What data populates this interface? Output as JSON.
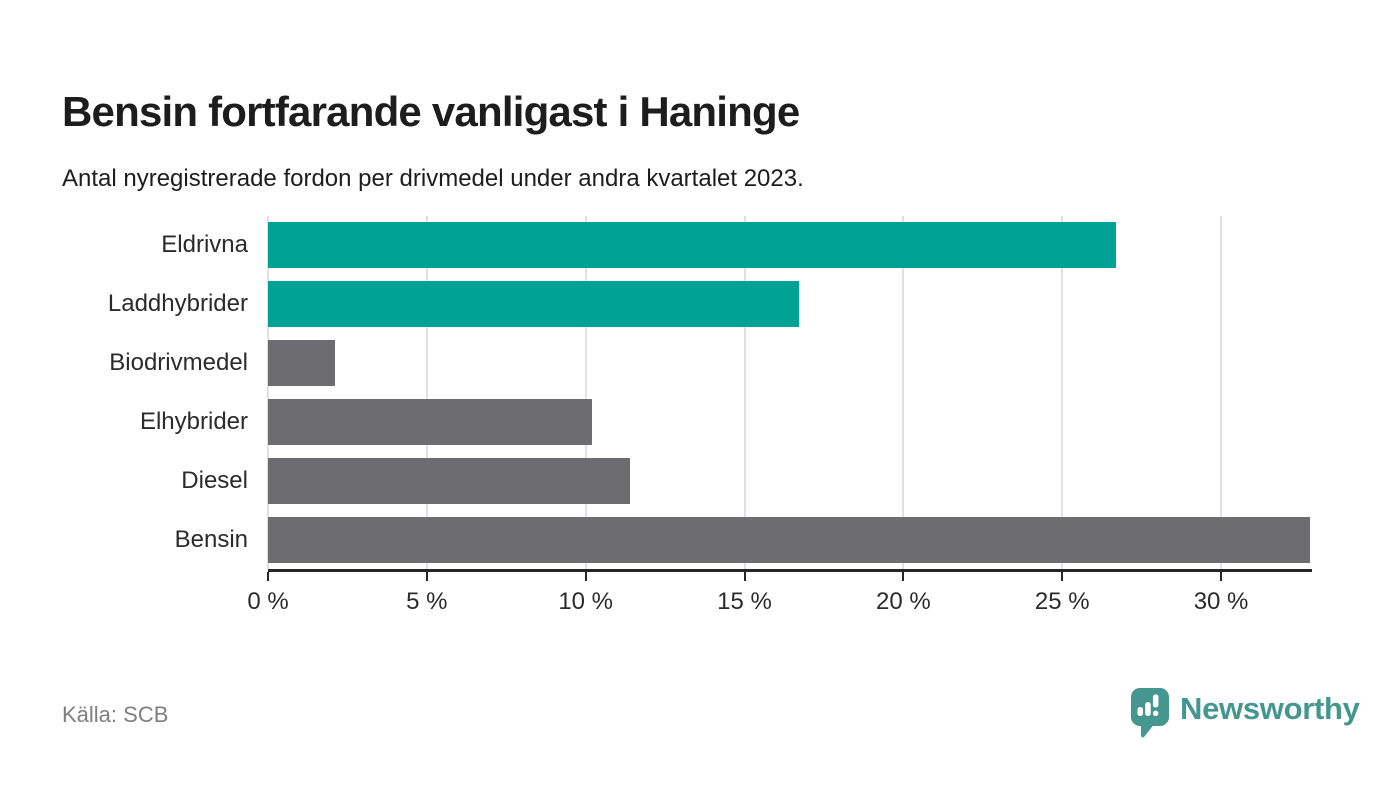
{
  "page": {
    "title": "Bensin fortfarande vanligast i Haninge",
    "subtitle": "Antal nyregistrerade fordon per drivmedel under andra kvartalet 2023.",
    "source": "Källa: SCB",
    "brand": "Newsworthy"
  },
  "colors": {
    "accent_teal": "#00a296",
    "neutral_gray": "#6d6d71",
    "logo_teal": "#45968f",
    "axis": "#262626",
    "grid": "#e1e1e1",
    "text": "#1d1d1d",
    "muted_text": "#7f7f7f"
  },
  "chart_data": {
    "type": "bar",
    "orientation": "horizontal",
    "title": "Bensin fortfarande vanligast i Haninge",
    "subtitle": "Antal nyregistrerade fordon per drivmedel under andra kvartalet 2023.",
    "source": "Källa: SCB",
    "categories": [
      "Eldrivna",
      "Laddhybrider",
      "Biodrivmedel",
      "Elhybrider",
      "Diesel",
      "Bensin"
    ],
    "values": [
      26.7,
      16.7,
      2.1,
      10.2,
      11.4,
      32.8
    ],
    "unit": "%",
    "bar_colors": [
      "#00a296",
      "#00a296",
      "#6d6d71",
      "#6d6d71",
      "#6d6d71",
      "#6d6d71"
    ],
    "highlight_note": "Eldrivna and Laddhybrider highlighted in teal, others gray",
    "xlim": [
      0,
      32.8
    ],
    "x_ticks": [
      0,
      5,
      10,
      15,
      20,
      25,
      30
    ],
    "x_tick_labels": [
      "0 %",
      "5 %",
      "10 %",
      "15 %",
      "20 %",
      "25 %",
      "30 %"
    ],
    "grid": "vertical-only",
    "legend": "none"
  }
}
